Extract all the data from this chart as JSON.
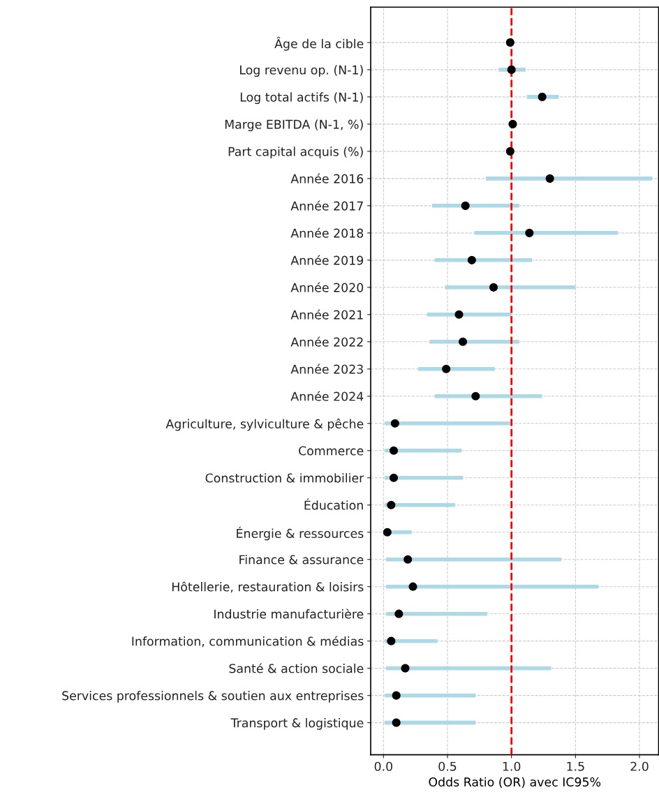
{
  "chart_data": {
    "type": "scatter",
    "orientation": "horizontal",
    "xlabel": "Odds Ratio (OR) avec IC95%",
    "categories": [
      "Âge de la cible",
      "Log revenu op. (N-1)",
      "Log total actifs (N-1)",
      "Marge EBITDA (N-1, %)",
      "Part capital acquis (%)",
      "Année 2016",
      "Année 2017",
      "Année 2018",
      "Année 2019",
      "Année 2020",
      "Année 2021",
      "Année 2022",
      "Année 2023",
      "Année 2024",
      "Agriculture, sylviculture & pêche",
      "Commerce",
      "Construction & immobilier",
      "Éducation",
      "Énergie & ressources",
      "Finance & assurance",
      "Hôtellerie, restauration & loisirs",
      "Industrie manufacturière",
      "Information, communication & médias",
      "Santé & action sociale",
      "Services professionnels & soutien aux entreprises",
      "Transport & logistique"
    ],
    "series": [
      {
        "color": "#000000",
        "values": [
          0.99,
          1.0,
          1.24,
          1.01,
          0.99,
          1.3,
          0.64,
          1.14,
          0.69,
          0.86,
          0.59,
          0.62,
          0.49,
          0.72,
          0.09,
          0.08,
          0.08,
          0.06,
          0.03,
          0.19,
          0.23,
          0.12,
          0.06,
          0.17,
          0.1,
          0.1
        ],
        "errors": [
          null,
          [
            0.9,
            1.11
          ],
          [
            1.12,
            1.37
          ],
          null,
          null,
          [
            0.8,
            2.1
          ],
          [
            0.38,
            1.06
          ],
          [
            0.71,
            1.83
          ],
          [
            0.4,
            1.16
          ],
          [
            0.48,
            1.5
          ],
          [
            0.34,
            1.0
          ],
          [
            0.36,
            1.06
          ],
          [
            0.27,
            0.87
          ],
          [
            0.4,
            1.24
          ],
          [
            0.01,
            0.99
          ],
          [
            0.01,
            0.61
          ],
          [
            0.01,
            0.62
          ],
          [
            0.01,
            0.56
          ],
          [
            0.01,
            0.22
          ],
          [
            0.02,
            1.39
          ],
          [
            0.02,
            1.68
          ],
          [
            0.02,
            0.81
          ],
          [
            0.01,
            0.42
          ],
          [
            0.02,
            1.31
          ],
          [
            0.01,
            0.72
          ],
          [
            0.01,
            0.72
          ]
        ]
      }
    ],
    "xlim": [
      -0.1,
      2.15
    ],
    "xticks": [
      {
        "value": 0,
        "label": "0.0"
      },
      {
        "value": 0.5,
        "label": "0.5"
      },
      {
        "value": 1,
        "label": "1.0"
      },
      {
        "value": 1.5,
        "label": "1.5"
      },
      {
        "value": 2,
        "label": "2.0"
      }
    ],
    "ref_lines": [
      {
        "axis": "x",
        "value": 1,
        "color": "#ff0000",
        "line_style": "dashed"
      }
    ],
    "grid": true,
    "marker": "circle"
  }
}
